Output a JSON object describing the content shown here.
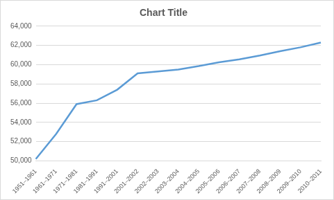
{
  "chart_data": {
    "type": "line",
    "title": "Chart Title",
    "categories": [
      "1951–1961",
      "1961–1971",
      "1971–1981",
      "1981–1991",
      "1991–2001",
      "2001–2002",
      "2002–2003",
      "2003–2004",
      "2004–2005",
      "2005–2006",
      "2006–2007",
      "2007–2008",
      "2008–2009",
      "2009–2010",
      "2010–2011"
    ],
    "values": [
      50200,
      52800,
      55900,
      56300,
      57400,
      59100,
      59300,
      59500,
      59850,
      60250,
      60550,
      60950,
      61400,
      61800,
      62300
    ],
    "color": "#5b9bd5",
    "ylim": [
      50000,
      64000
    ],
    "yticks": [
      {
        "value": 50000,
        "label": "50,000"
      },
      {
        "value": 52000,
        "label": "52,000"
      },
      {
        "value": 54000,
        "label": "54,000"
      },
      {
        "value": 56000,
        "label": "56,000"
      },
      {
        "value": 58000,
        "label": "58,000"
      },
      {
        "value": 60000,
        "label": "60,000"
      },
      {
        "value": 62000,
        "label": "62,000"
      },
      {
        "value": 64000,
        "label": "64,000"
      }
    ],
    "grid": true
  }
}
